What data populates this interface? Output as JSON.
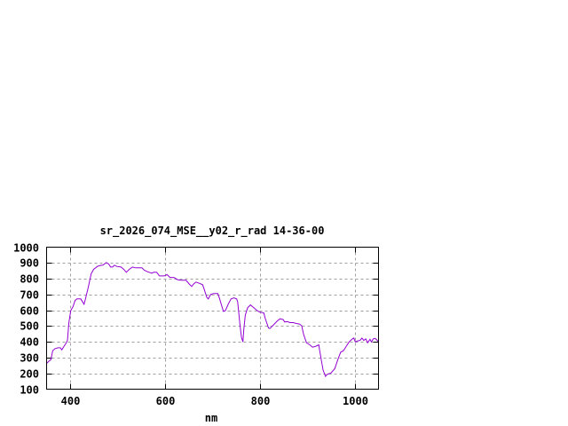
{
  "chart_data": {
    "type": "line",
    "title": "sr_2026_074_MSE__y02_r_rad 14-36-00",
    "xlabel": "nm",
    "ylabel": "",
    "xlim": [
      350,
      1050
    ],
    "ylim": [
      100,
      1000
    ],
    "xticks": [
      400,
      600,
      800,
      1000
    ],
    "yticks": [
      100,
      200,
      300,
      400,
      500,
      600,
      700,
      800,
      900,
      1000
    ],
    "grid": true,
    "legend": "none",
    "line_color": "#9400d3",
    "series": [
      {
        "x": [
          350,
          355,
          359,
          363,
          368,
          374,
          379,
          382,
          386,
          391,
          394,
          397,
          401,
          406,
          410,
          414,
          422,
          426,
          429,
          432,
          438,
          444,
          449,
          457,
          463,
          469,
          476,
          481,
          485,
          489,
          493,
          498,
          507,
          513,
          518,
          524,
          531,
          538,
          543,
          551,
          556,
          563,
          572,
          576,
          582,
          588,
          598,
          604,
          610,
          619,
          626,
          633,
          644,
          651,
          656,
          660,
          665,
          672,
          679,
          683,
          688,
          691,
          696,
          702,
          711,
          714,
          721,
          723,
          727,
          733,
          739,
          745,
          751,
          753,
          758,
          761,
          764,
          766,
          769,
          774,
          780,
          786,
          792,
          799,
          808,
          811,
          818,
          821,
          827,
          836,
          842,
          849,
          852,
          858,
          863,
          870,
          877,
          883,
          888,
          892,
          898,
          905,
          911,
          918,
          924,
          926,
          933,
          938,
          942,
          950,
          958,
          964,
          970,
          976,
          982,
          988,
          995,
          998,
          1001,
          1006,
          1011,
          1015,
          1019,
          1023,
          1027,
          1032,
          1035,
          1039,
          1043,
          1046,
          1050
        ],
        "y": [
          263,
          278,
          287,
          344,
          357,
          362,
          362,
          349,
          368,
          391,
          409,
          522,
          597,
          625,
          662,
          672,
          672,
          653,
          638,
          672,
          747,
          831,
          859,
          878,
          884,
          887,
          902,
          893,
          874,
          874,
          886,
          878,
          874,
          859,
          841,
          859,
          874,
          869,
          869,
          869,
          854,
          844,
          835,
          841,
          841,
          818,
          818,
          826,
          809,
          807,
          794,
          790,
          790,
          766,
          751,
          766,
          779,
          771,
          762,
          728,
          681,
          672,
          700,
          706,
          706,
          681,
          612,
          593,
          597,
          638,
          672,
          679,
          672,
          653,
          503,
          428,
          400,
          484,
          569,
          616,
          634,
          619,
          603,
          588,
          584,
          550,
          488,
          484,
          503,
          531,
          546,
          541,
          526,
          528,
          522,
          522,
          516,
          513,
          503,
          447,
          394,
          381,
          366,
          372,
          381,
          344,
          222,
          181,
          194,
          203,
          231,
          287,
          334,
          344,
          372,
          400,
          419,
          424,
          400,
          406,
          409,
          424,
          409,
          419,
          394,
          416,
          400,
          419,
          422,
          413,
          400
        ]
      }
    ]
  }
}
